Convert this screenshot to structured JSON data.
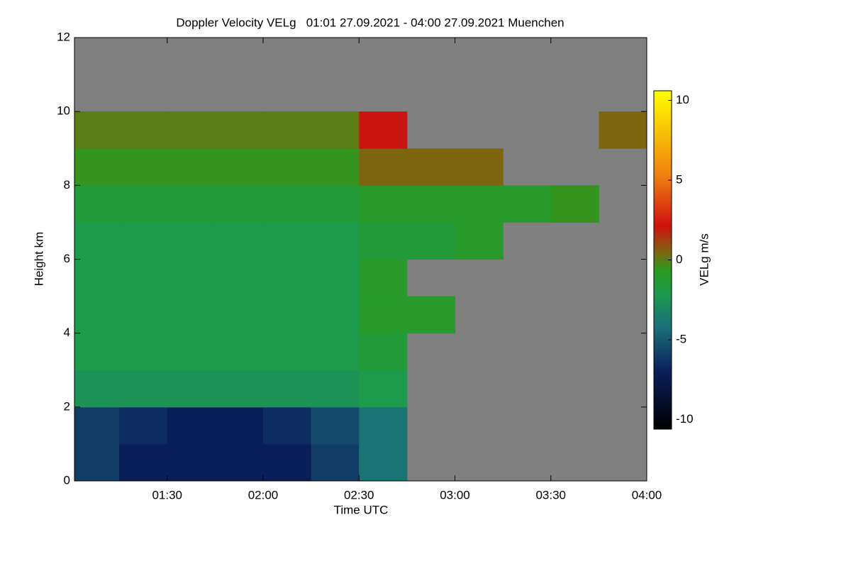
{
  "chart_data": {
    "type": "heatmap",
    "title": "Doppler Velocity VELg   01:01 27.09.2021 - 04:00 27.09.2021 Muenchen",
    "x_label": "Time UTC",
    "y_label": "Height km",
    "colorbar_label": "VELg m/s",
    "x": [
      61,
      75,
      90,
      105,
      120,
      135,
      150,
      165,
      180,
      195,
      210,
      225,
      240
    ],
    "y": [
      0,
      1,
      2,
      3,
      4,
      5,
      6,
      7,
      8,
      9,
      10,
      11,
      12
    ],
    "z": [
      [
        -6,
        -7,
        -7,
        -7,
        -7,
        -6,
        -4,
        null,
        null,
        null,
        null,
        null
      ],
      [
        -6,
        -6.5,
        -7,
        -7,
        -6.5,
        -5.5,
        -4,
        null,
        null,
        null,
        null,
        null
      ],
      [
        -2.5,
        -2.5,
        -2.5,
        -2.5,
        -2.5,
        -2.5,
        -2,
        null,
        null,
        null,
        null,
        null
      ],
      [
        -2,
        -2,
        -2,
        -2,
        -2,
        -2,
        -1.5,
        null,
        null,
        null,
        null,
        null
      ],
      [
        -2,
        -2,
        -2,
        -2,
        -2,
        -2,
        -1,
        -1,
        null,
        null,
        null,
        null
      ],
      [
        -2,
        -2,
        -2,
        -2,
        -2,
        -2,
        -1,
        null,
        null,
        null,
        null,
        null
      ],
      [
        -2,
        -2,
        -2,
        -2,
        -2,
        -2,
        -1.5,
        -1.5,
        -1,
        null,
        null,
        null
      ],
      [
        -1.5,
        -1.5,
        -1.5,
        -1.5,
        -1.5,
        -1.5,
        -1,
        -1,
        -1,
        -1,
        -0.5,
        null
      ],
      [
        -0.5,
        -0.5,
        -0.5,
        -0.5,
        -0.5,
        -0.5,
        0.5,
        0.5,
        0.5,
        null,
        null,
        null
      ],
      [
        0,
        0,
        0,
        0,
        0,
        0,
        2,
        null,
        null,
        null,
        null,
        0.5
      ],
      [
        null,
        null,
        null,
        null,
        null,
        null,
        null,
        null,
        null,
        null,
        null,
        null
      ],
      [
        null,
        null,
        null,
        null,
        null,
        null,
        null,
        null,
        null,
        null,
        null,
        null
      ]
    ],
    "xlim": [
      61,
      240
    ],
    "xticks": [
      {
        "value": 90,
        "label": "01:30"
      },
      {
        "value": 120,
        "label": "02:00"
      },
      {
        "value": 150,
        "label": "02:30"
      },
      {
        "value": 180,
        "label": "03:00"
      },
      {
        "value": 210,
        "label": "03:30"
      },
      {
        "value": 240,
        "label": "04:00"
      }
    ],
    "ylim": [
      0,
      12
    ],
    "yticks": [
      0,
      2,
      4,
      6,
      8,
      10,
      12
    ],
    "clim": [
      -10.6,
      10.6
    ],
    "cticks": [
      -10,
      -5,
      0,
      5,
      10
    ],
    "no_data_color": "#808080"
  }
}
